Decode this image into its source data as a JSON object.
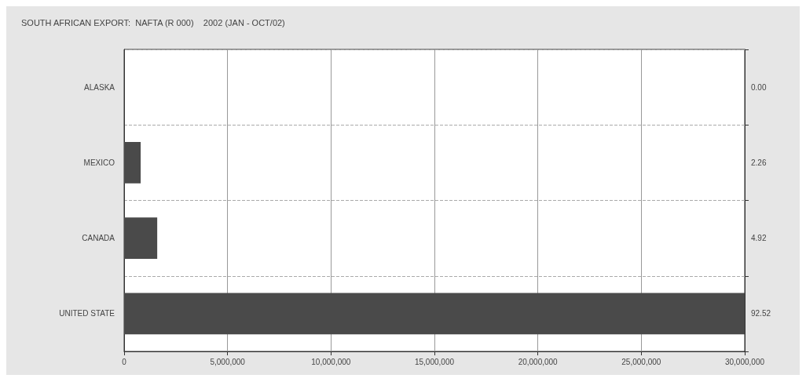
{
  "chart_data": {
    "type": "bar",
    "orientation": "horizontal",
    "title": "SOUTH AFRICAN EXPORT:  NAFTA (R 000)    2002 (JAN - OCT/02)",
    "categories": [
      "ALASKA",
      "MEXICO",
      "CANADA",
      "UNITED STATE"
    ],
    "values": [
      0,
      800000,
      1600000,
      30000000
    ],
    "color": "#4a4a4a",
    "xlim": [
      0,
      30000000
    ],
    "xticks": [
      0,
      {
        "value": 5000000,
        "label": "5,000,000"
      },
      {
        "value": 10000000,
        "label": "10,000,000"
      },
      {
        "value": 15000000,
        "label": "15,000,000"
      },
      {
        "value": 20000000,
        "label": "20,000,000"
      },
      {
        "value": 25000000,
        "label": "25,000,000"
      },
      {
        "value": 30000000,
        "label": "30,000,000"
      }
    ],
    "annotations": [
      "0.00",
      "2.26",
      "4.92",
      "92.52"
    ],
    "grid": true
  }
}
